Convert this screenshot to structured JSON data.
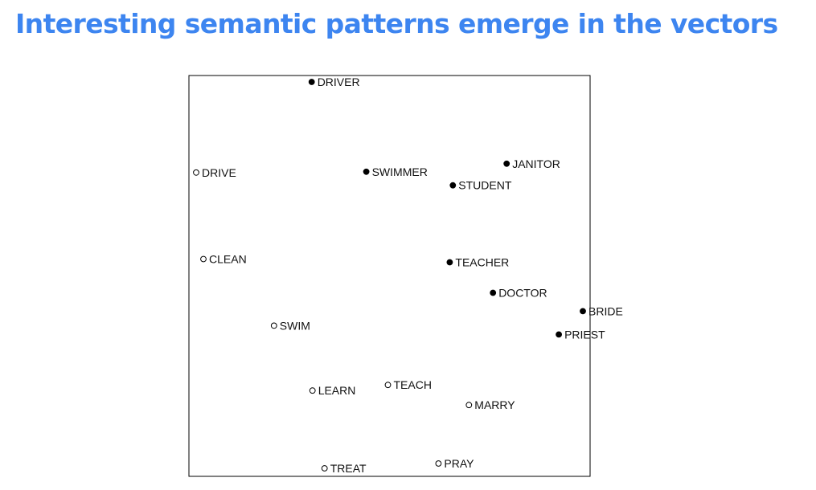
{
  "slide": {
    "title": "Interesting semantic patterns emerge in the vectors"
  },
  "chart_data": {
    "type": "scatter",
    "title": "",
    "xlabel": "",
    "ylabel": "",
    "xlim": [
      0,
      100
    ],
    "ylim": [
      0,
      100
    ],
    "grid": false,
    "legend": "none",
    "marker_styles": {
      "filled": "#000000",
      "hollow": "#ffffff",
      "stroke": "#000000"
    },
    "points": [
      {
        "label": "DRIVER",
        "x": 30.6,
        "y": 98.4,
        "marker": "filled"
      },
      {
        "label": "JANITOR",
        "x": 79.2,
        "y": 78.0,
        "marker": "filled"
      },
      {
        "label": "DRIVE",
        "x": 1.8,
        "y": 75.8,
        "marker": "hollow"
      },
      {
        "label": "SWIMMER",
        "x": 44.2,
        "y": 76.0,
        "marker": "filled"
      },
      {
        "label": "STUDENT",
        "x": 65.8,
        "y": 72.6,
        "marker": "filled"
      },
      {
        "label": "CLEAN",
        "x": 3.6,
        "y": 54.2,
        "marker": "hollow"
      },
      {
        "label": "TEACHER",
        "x": 65.0,
        "y": 53.4,
        "marker": "filled"
      },
      {
        "label": "DOCTOR",
        "x": 75.8,
        "y": 45.8,
        "marker": "filled"
      },
      {
        "label": "BRIDE",
        "x": 98.2,
        "y": 41.2,
        "marker": "filled"
      },
      {
        "label": "SWIM",
        "x": 21.2,
        "y": 37.6,
        "marker": "hollow"
      },
      {
        "label": "PRIEST",
        "x": 92.2,
        "y": 35.4,
        "marker": "filled"
      },
      {
        "label": "LEARN",
        "x": 30.8,
        "y": 21.4,
        "marker": "hollow"
      },
      {
        "label": "TEACH",
        "x": 49.6,
        "y": 22.8,
        "marker": "hollow"
      },
      {
        "label": "MARRY",
        "x": 69.8,
        "y": 17.8,
        "marker": "hollow"
      },
      {
        "label": "PRAY",
        "x": 62.2,
        "y": 3.2,
        "marker": "hollow"
      },
      {
        "label": "TREAT",
        "x": 33.8,
        "y": 2.0,
        "marker": "hollow"
      }
    ]
  }
}
